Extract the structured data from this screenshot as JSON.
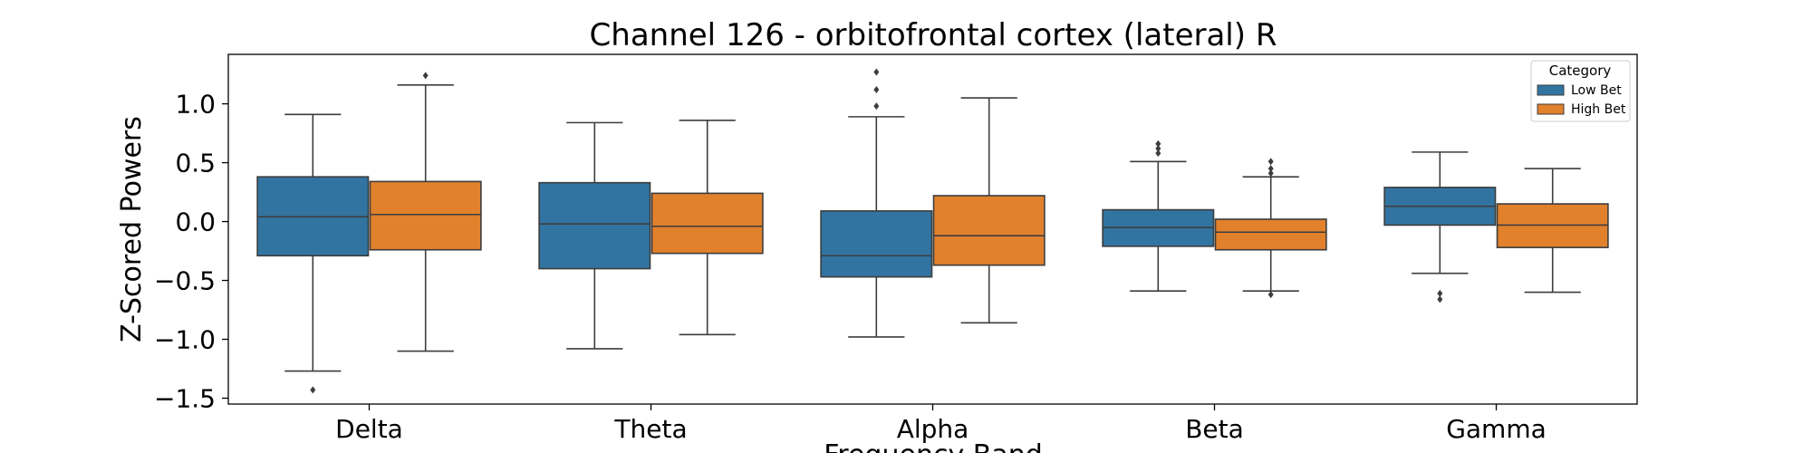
{
  "chart_data": {
    "type": "boxplot",
    "title": "Channel 126 - orbitofrontal cortex (lateral) R",
    "xlabel": "Frequency Band",
    "ylabel": "Z-Scored Powers",
    "ylim": [
      -1.55,
      1.42
    ],
    "yticks": [
      1.0,
      0.5,
      0.0,
      -0.5,
      -1.0,
      -1.5
    ],
    "ytick_labels": [
      "1.0",
      "0.5",
      "0.0",
      "−0.5",
      "−1.0",
      "−1.5"
    ],
    "categories": [
      "Delta",
      "Theta",
      "Alpha",
      "Beta",
      "Gamma"
    ],
    "legend": {
      "title": "Category",
      "position": "top-right"
    },
    "series": [
      {
        "name": "Low Bet",
        "color": "#3274a1",
        "boxes": [
          {
            "whislo": -1.27,
            "q1": -0.29,
            "med": 0.04,
            "q3": 0.38,
            "whishi": 0.91,
            "fliers": [
              -1.43
            ]
          },
          {
            "whislo": -1.08,
            "q1": -0.4,
            "med": -0.02,
            "q3": 0.33,
            "whishi": 0.84,
            "fliers": []
          },
          {
            "whislo": -0.98,
            "q1": -0.47,
            "med": -0.29,
            "q3": 0.09,
            "whishi": 0.89,
            "fliers": [
              0.98,
              1.12,
              1.27
            ]
          },
          {
            "whislo": -0.59,
            "q1": -0.21,
            "med": -0.05,
            "q3": 0.1,
            "whishi": 0.51,
            "fliers": [
              0.58,
              0.62,
              0.66
            ]
          },
          {
            "whislo": -0.44,
            "q1": -0.03,
            "med": 0.13,
            "q3": 0.29,
            "whishi": 0.59,
            "fliers": [
              -0.61,
              -0.66
            ]
          }
        ]
      },
      {
        "name": "High Bet",
        "color": "#e1812c",
        "boxes": [
          {
            "whislo": -1.1,
            "q1": -0.24,
            "med": 0.06,
            "q3": 0.34,
            "whishi": 1.16,
            "fliers": [
              1.24
            ]
          },
          {
            "whislo": -0.96,
            "q1": -0.27,
            "med": -0.04,
            "q3": 0.24,
            "whishi": 0.86,
            "fliers": []
          },
          {
            "whislo": -0.86,
            "q1": -0.37,
            "med": -0.12,
            "q3": 0.22,
            "whishi": 1.05,
            "fliers": []
          },
          {
            "whislo": -0.59,
            "q1": -0.24,
            "med": -0.09,
            "q3": 0.02,
            "whishi": 0.38,
            "fliers": [
              0.41,
              0.45,
              0.51,
              -0.62
            ]
          },
          {
            "whislo": -0.6,
            "q1": -0.22,
            "med": -0.03,
            "q3": 0.15,
            "whishi": 0.45,
            "fliers": []
          }
        ]
      }
    ]
  }
}
